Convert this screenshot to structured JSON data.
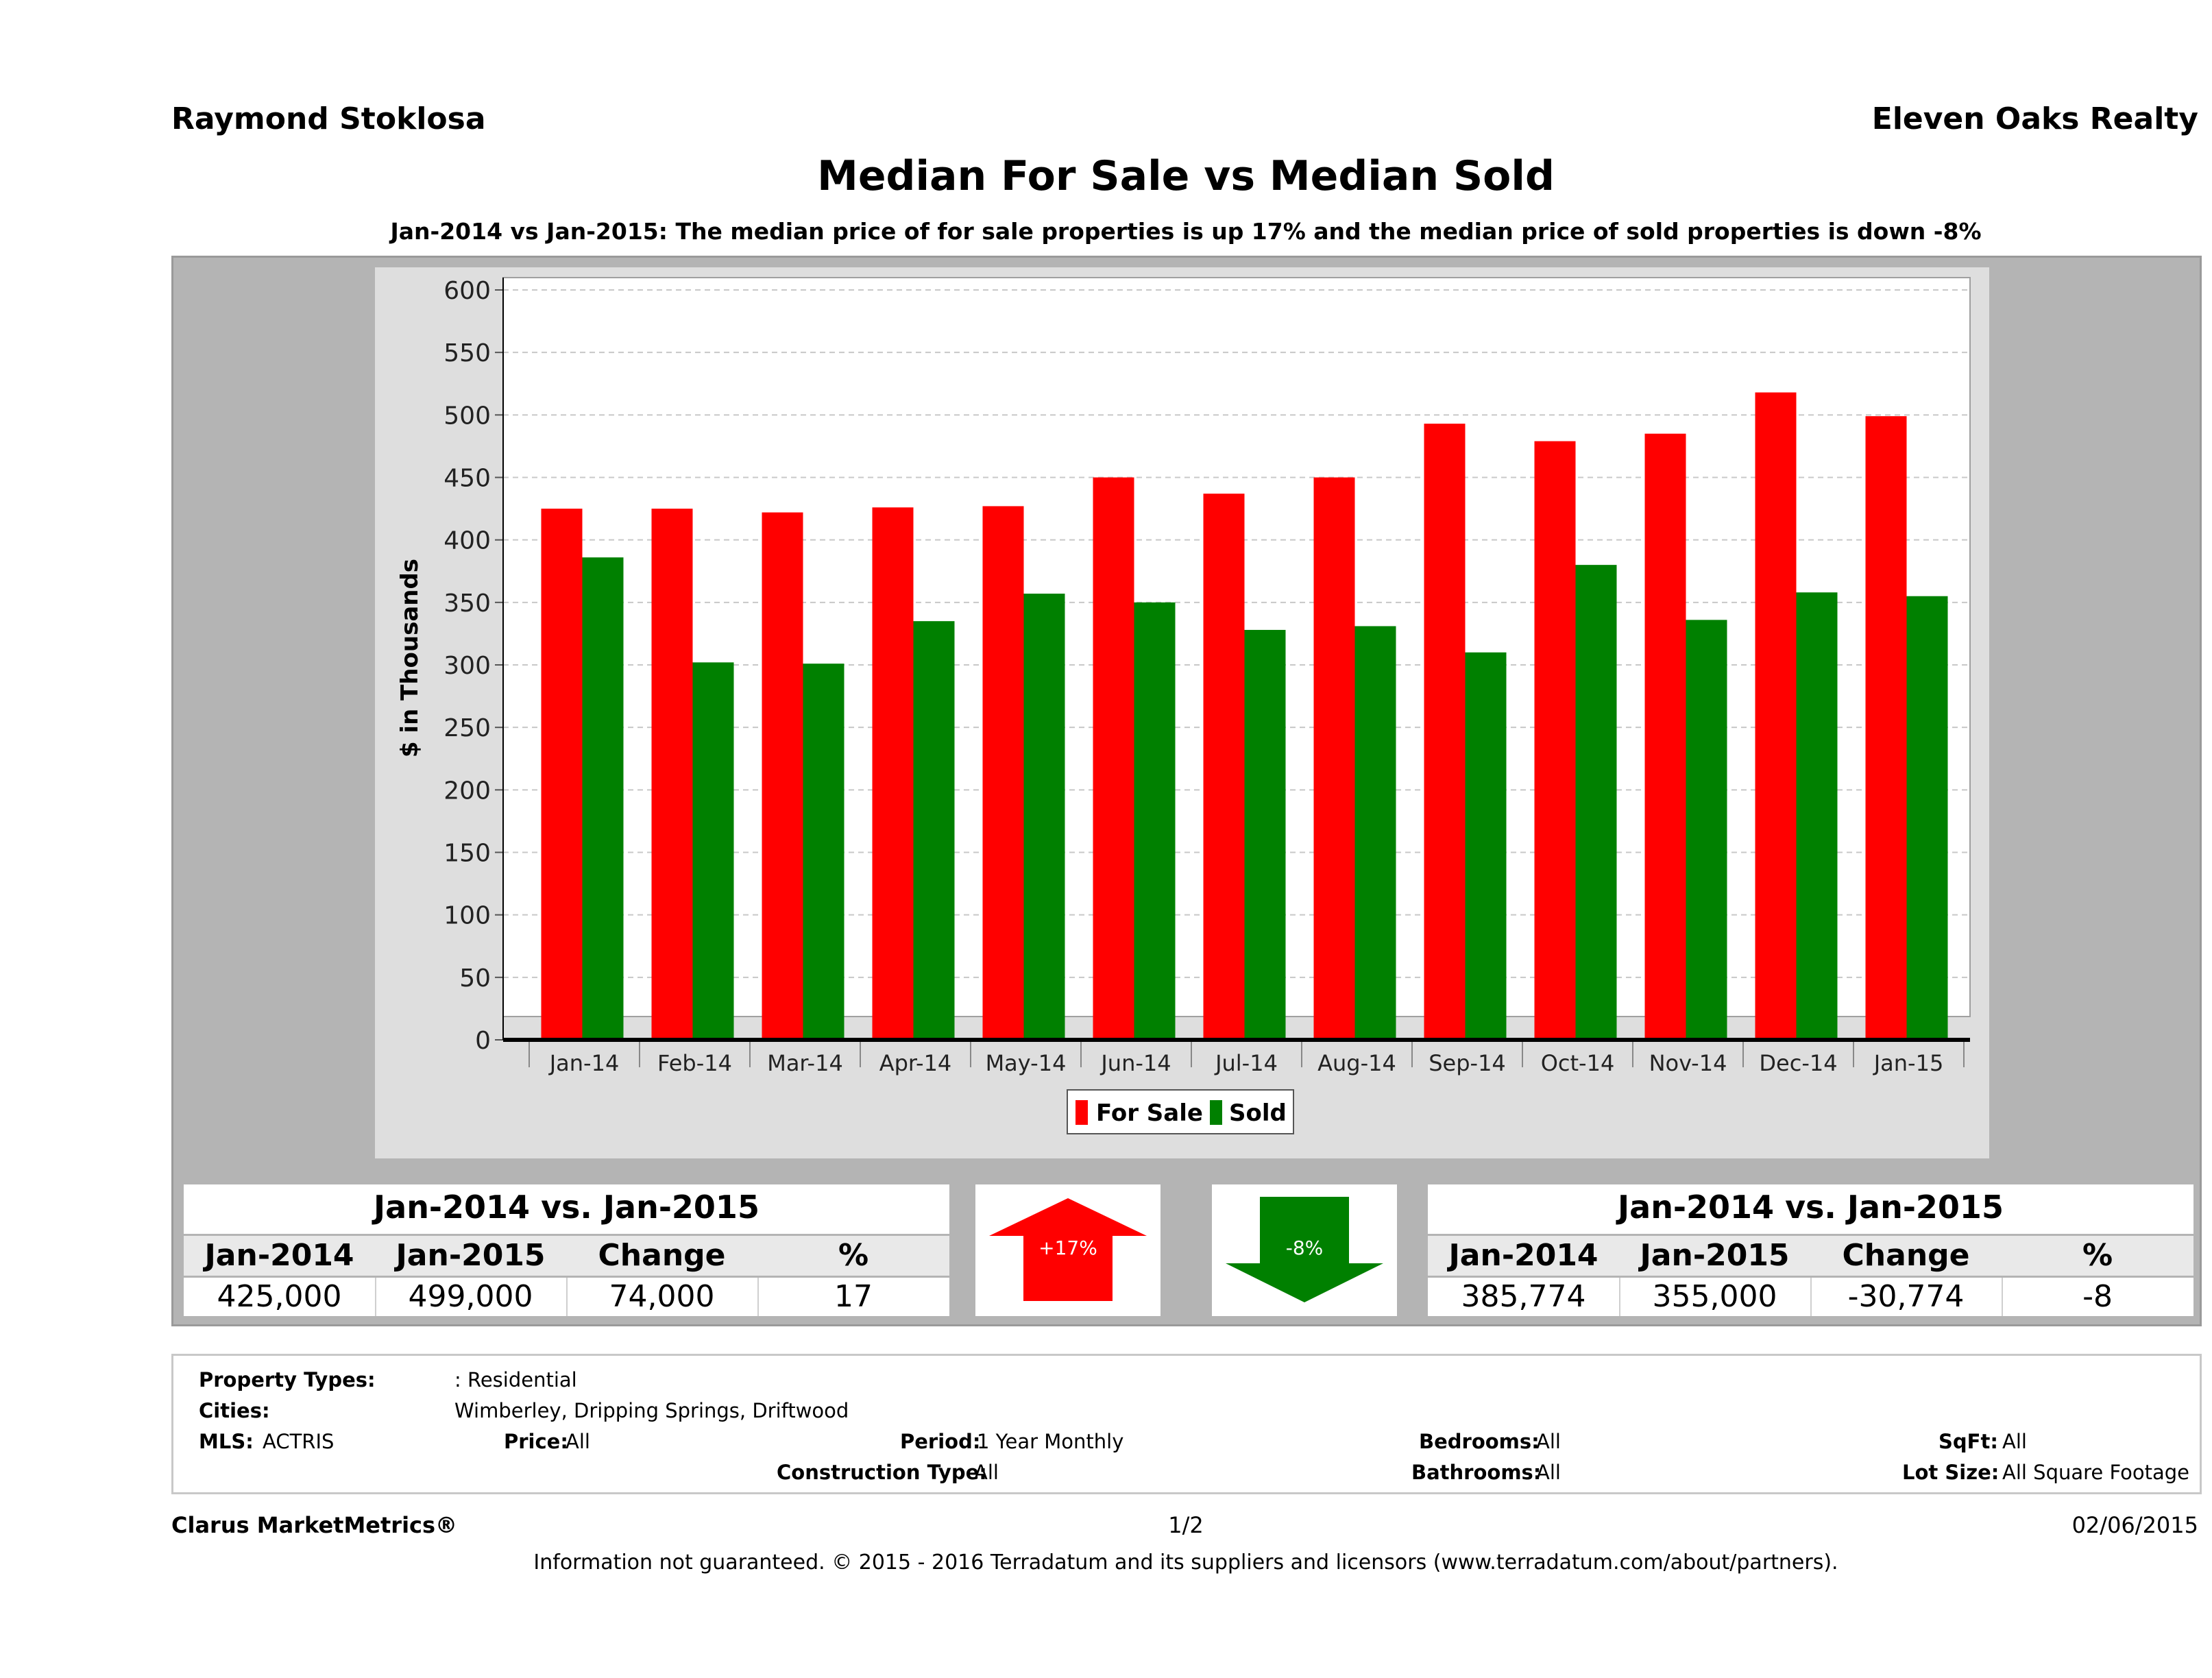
{
  "header": {
    "agent_name": "Raymond Stoklosa",
    "brokerage": "Eleven Oaks Realty"
  },
  "chart_data": {
    "type": "bar",
    "title": "Median For Sale vs Median Sold",
    "subtitle": "Jan-2014 vs Jan-2015: The median price of for sale properties is up 17% and the median price of sold properties is down -8%",
    "xlabel": "",
    "ylabel": "$ in Thousands",
    "ylim": [
      0,
      600
    ],
    "yticks": [
      "0",
      "50",
      "100",
      "150",
      "200",
      "250",
      "300",
      "350",
      "400",
      "450",
      "500",
      "550",
      "600"
    ],
    "categories": [
      "Jan-14",
      "Feb-14",
      "Mar-14",
      "Apr-14",
      "May-14",
      "Jun-14",
      "Jul-14",
      "Aug-14",
      "Sep-14",
      "Oct-14",
      "Nov-14",
      "Dec-14",
      "Jan-15"
    ],
    "series": [
      {
        "name": "For Sale",
        "color": "#ff0000",
        "values": [
          425,
          425,
          422,
          426,
          427,
          450,
          437,
          450,
          493,
          479,
          485,
          518,
          499
        ]
      },
      {
        "name": "Sold",
        "color": "#008000",
        "values": [
          386,
          302,
          301,
          335,
          357,
          350,
          328,
          331,
          310,
          380,
          336,
          358,
          355
        ]
      }
    ],
    "grid": true,
    "legend_position": "bottom"
  },
  "summary": {
    "for_sale": {
      "title": "Jan-2014 vs. Jan-2015",
      "headers": [
        "Jan-2014",
        "Jan-2015",
        "Change",
        "%"
      ],
      "values": [
        "425,000",
        "499,000",
        "74,000",
        "17"
      ],
      "arrow_label": "+17%",
      "arrow_direction": "up",
      "arrow_color": "#ff0000"
    },
    "sold": {
      "title": "Jan-2014 vs. Jan-2015",
      "headers": [
        "Jan-2014",
        "Jan-2015",
        "Change",
        "%"
      ],
      "values": [
        "385,774",
        "355,000",
        "-30,774",
        "-8"
      ],
      "arrow_label": "-8%",
      "arrow_direction": "down",
      "arrow_color": "#008000"
    }
  },
  "criteria": {
    "property_types_label": "Property Types:",
    "property_types_value": ": Residential",
    "cities_label": "Cities:",
    "cities_value": "Wimberley, Dripping Springs, Driftwood",
    "mls_label": "MLS:",
    "mls_value": "ACTRIS",
    "price_label": "Price:",
    "price_value": "All",
    "period_label": "Period:",
    "period_value": "1 Year Monthly",
    "construction_label": "Construction Type:",
    "construction_value": "All",
    "bedrooms_label": "Bedrooms:",
    "bedrooms_value": "All",
    "bathrooms_label": "Bathrooms:",
    "bathrooms_value": "All",
    "sqft_label": "SqFt:",
    "sqft_value": "All",
    "lotsize_label": "Lot Size:",
    "lotsize_value": "All Square Footage"
  },
  "footer": {
    "brand": "Clarus MarketMetrics®",
    "page": "1/2",
    "date": "02/06/2015",
    "disclaimer": "Information not guaranteed. © 2015 - 2016 Terradatum and its suppliers and licensors (www.terradatum.com/about/partners)."
  }
}
